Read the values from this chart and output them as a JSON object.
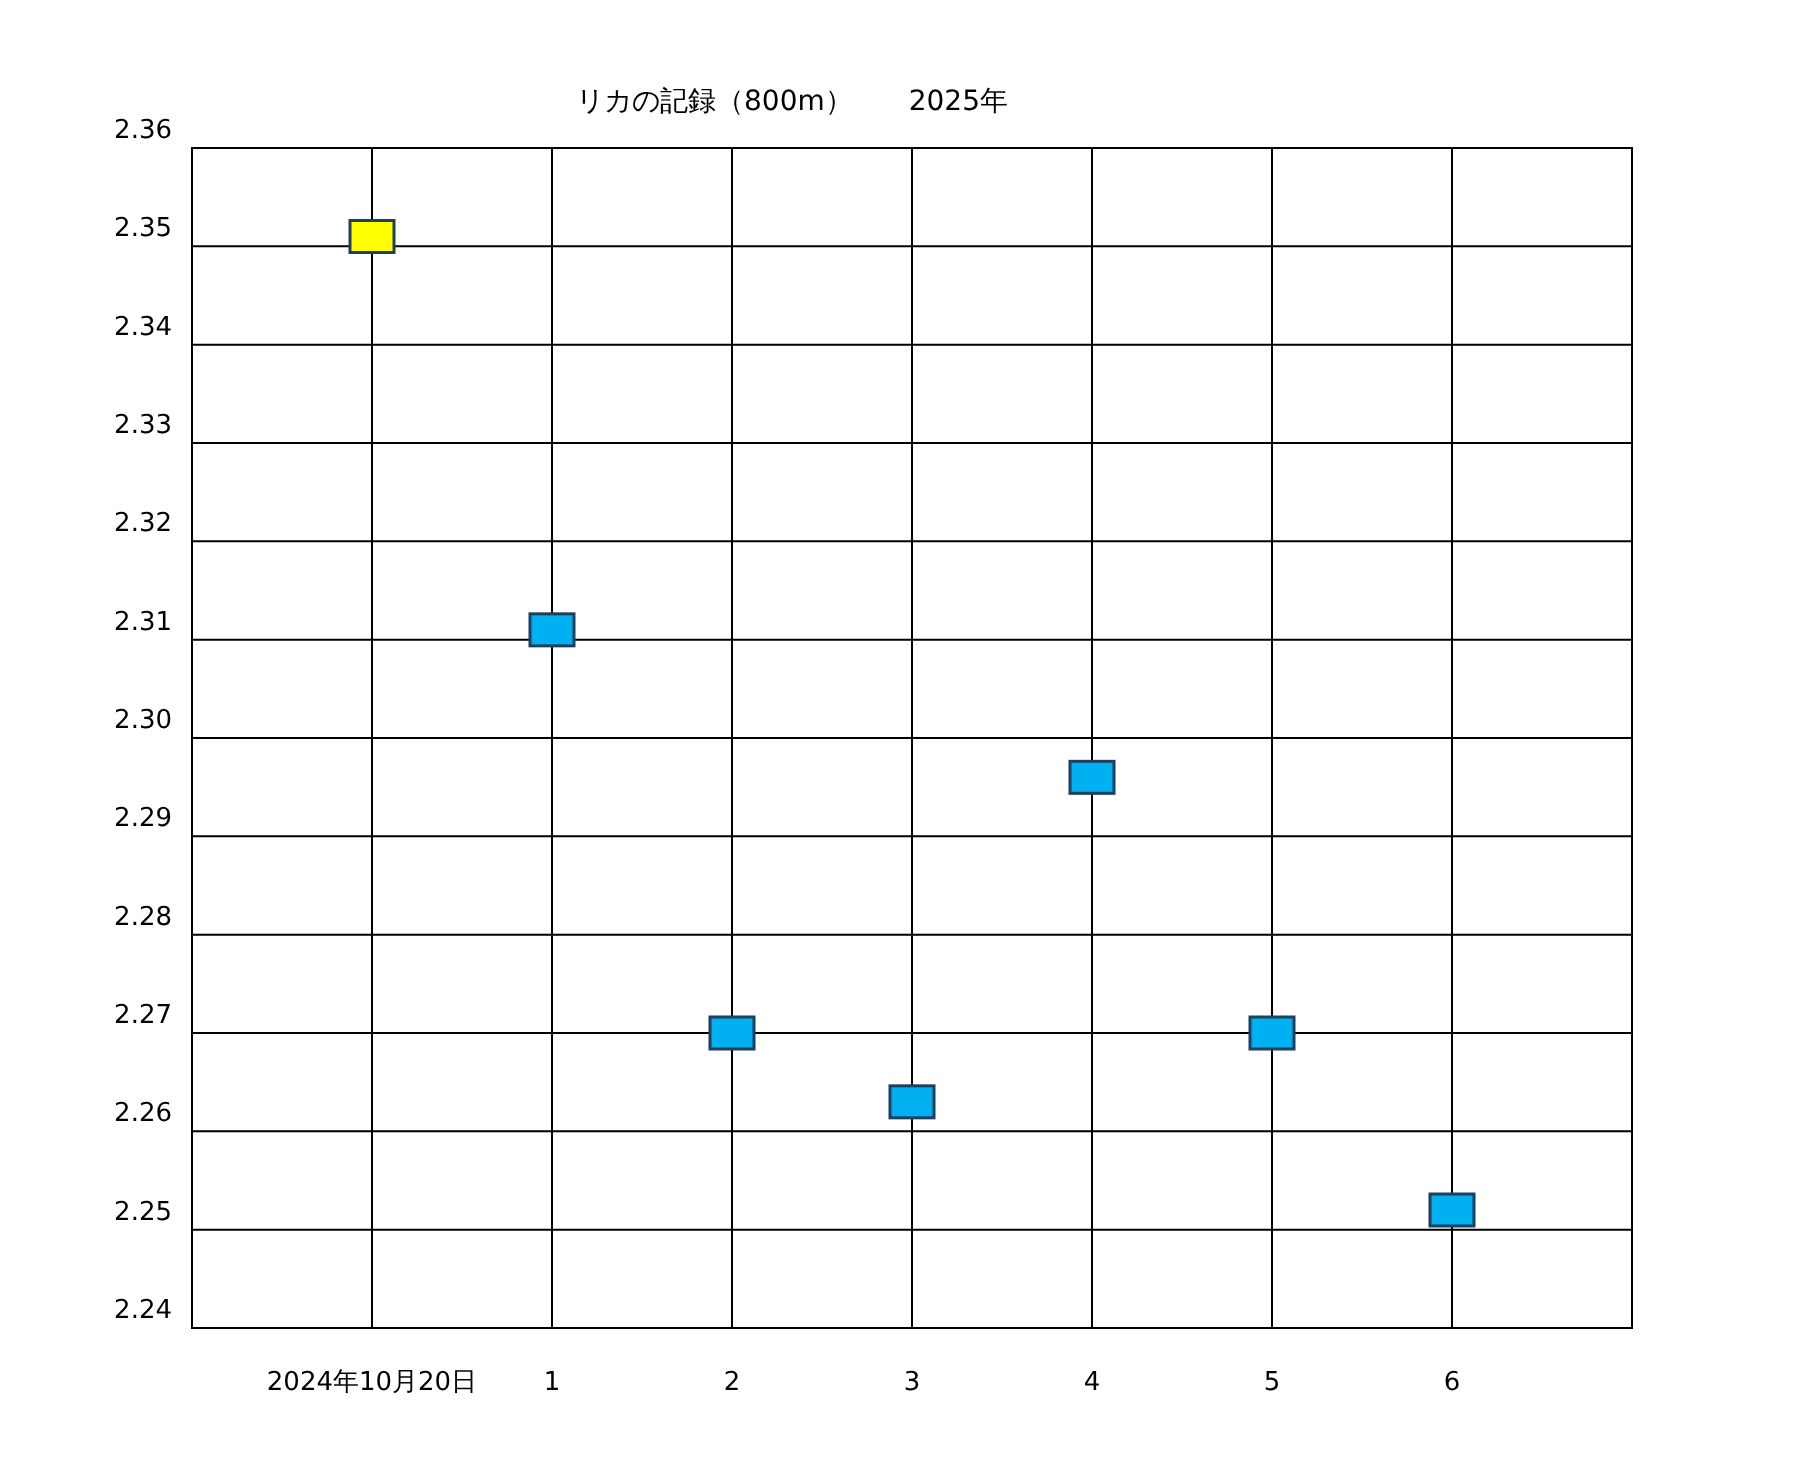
{
  "chart_data": {
    "type": "scatter",
    "title": "リカの記録（800m）　　2025年",
    "categories": [
      "2024年10月20日",
      "1",
      "2",
      "3",
      "4",
      "5",
      "6"
    ],
    "values": [
      2.351,
      2.311,
      2.27,
      2.263,
      2.296,
      2.27,
      2.252
    ],
    "colors": [
      "#ffff00",
      "#00b0f0",
      "#00b0f0",
      "#00b0f0",
      "#00b0f0",
      "#00b0f0",
      "#00b0f0"
    ],
    "ylim": [
      2.24,
      2.36
    ],
    "yticks": [
      2.24,
      2.25,
      2.26,
      2.27,
      2.28,
      2.29,
      {
        "value": 2.3,
        "label": "2.30"
      },
      2.31,
      2.32,
      2.33,
      2.34,
      2.35,
      2.36
    ],
    "grid": true,
    "marker": "square"
  }
}
